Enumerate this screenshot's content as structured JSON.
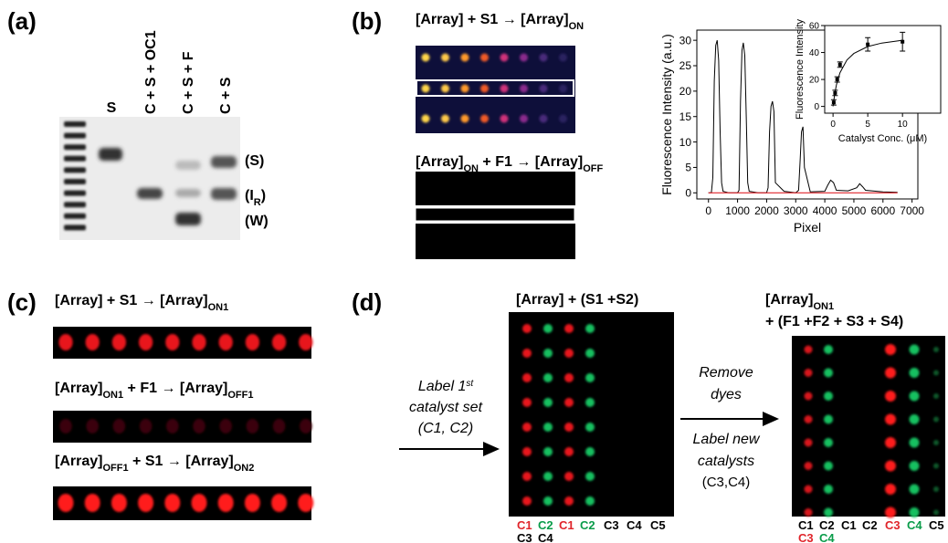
{
  "panel_a": {
    "label": "(a)",
    "lanes": [
      "S",
      "C + S + OC1",
      "C + S + F",
      "C + S"
    ],
    "band_s": "(S)",
    "band_ir": [
      "(I",
      "R",
      ")"
    ],
    "band_w": "(W)"
  },
  "panel_b": {
    "label": "(b)",
    "reaction_on": [
      "[Array] + S1 → [Array]",
      "ON"
    ],
    "reaction_off": [
      "[Array]",
      "ON",
      " + F1 → [Array]",
      "OFF"
    ]
  },
  "chart_data": [
    {
      "type": "line",
      "xlabel": "Pixel",
      "ylabel": "Fluorescence Intensity (a.u.)",
      "xlim": [
        -400,
        7200
      ],
      "ylim": [
        -1.2,
        32
      ],
      "xticks": [
        0,
        1000,
        2000,
        3000,
        4000,
        5000,
        6000,
        7000
      ],
      "yticks": [
        0,
        5,
        10,
        15,
        20,
        25,
        30
      ],
      "x": [
        0,
        100,
        150,
        200,
        250,
        300,
        350,
        400,
        450,
        500,
        700,
        1000,
        1050,
        1100,
        1150,
        1200,
        1250,
        1300,
        1350,
        1400,
        1700,
        2000,
        2050,
        2100,
        2150,
        2200,
        2250,
        2300,
        2600,
        3000,
        3100,
        3150,
        3200,
        3250,
        3300,
        3500,
        4000,
        4100,
        4200,
        4300,
        4400,
        4800,
        5100,
        5200,
        5300,
        5400,
        6000,
        6500
      ],
      "series": [
        {
          "color": "#000000",
          "values": [
            0,
            0,
            3,
            22,
            29,
            30,
            26,
            12,
            2,
            0.3,
            0,
            0,
            0.5,
            18,
            28,
            29.5,
            27,
            15,
            2,
            0.3,
            0,
            0,
            1,
            12,
            17,
            18,
            16,
            2,
            0.3,
            0,
            0.5,
            6,
            12,
            13,
            5,
            0.2,
            0.3,
            1.5,
            2.5,
            2,
            0.5,
            0.4,
            1,
            1.8,
            1.2,
            0.5,
            0.2,
            0.1
          ]
        },
        {
          "color": "#e0252b",
          "values": [
            0,
            0,
            0,
            0,
            0,
            0,
            0,
            0,
            0,
            0,
            0,
            0,
            0,
            0,
            0,
            0,
            0,
            0,
            0,
            0,
            0,
            0,
            0,
            0,
            0,
            0,
            0,
            0,
            0,
            0,
            0,
            0,
            0,
            0,
            0,
            0,
            0,
            0,
            0,
            0,
            0,
            0,
            0,
            0,
            0,
            0,
            0,
            0
          ]
        }
      ]
    },
    {
      "type": "scatter",
      "xlabel": "Catalyst Conc. (μM)",
      "ylabel": "Fluorescence Intensity",
      "xlim": [
        -1.2,
        15.5
      ],
      "ylim": [
        -5,
        60
      ],
      "xticks": [
        0,
        5,
        10
      ],
      "yticks": [
        0,
        20,
        40,
        60
      ],
      "x": [
        0.1,
        0.3,
        0.6,
        1,
        5,
        10
      ],
      "values": [
        3,
        10,
        20,
        31,
        46,
        48
      ],
      "errors": [
        2,
        2,
        2,
        2,
        5,
        7
      ],
      "color": "#000000",
      "fit": {
        "x": [
          0,
          0.25,
          0.5,
          1,
          2,
          3,
          5,
          7,
          10
        ],
        "values": [
          0,
          9.5,
          16.2,
          25,
          34.4,
          39.3,
          44.4,
          47,
          49.1
        ]
      }
    }
  ],
  "panel_c": {
    "label": "(c)",
    "reaction_1": [
      "[Array] + S1 → [Array]",
      "ON1"
    ],
    "reaction_2": [
      "[Array]",
      "ON1",
      " + F1 → [Array]",
      "OFF1"
    ],
    "reaction_3": [
      "[Array]",
      "OFF1",
      " + S1 → [Array]",
      "ON2"
    ]
  },
  "panel_d": {
    "label": "(d)",
    "left_title": "[Array] + (S1 +S2)",
    "right_title": [
      "[Array]",
      "ON1"
    ],
    "right_title_2": "+ (F1 +F2 + S3 + S4)",
    "step_1": [
      "Label 1",
      "st",
      "catalyst set",
      "(C1, C2)"
    ],
    "step_2": [
      "Remove",
      "dyes"
    ],
    "step_3": [
      "Label new",
      "catalysts",
      "(C3,C4)"
    ],
    "left_columns": [
      "C1",
      "C2",
      "C1",
      "C2",
      "C3",
      "C4",
      "C5"
    ],
    "left_columns_2": [
      "C3",
      "C4"
    ],
    "right_columns": [
      "C1",
      "C2",
      "C1",
      "C2",
      "C3",
      "C4",
      "C5"
    ],
    "right_columns_2": [
      "C3",
      "C4"
    ]
  }
}
